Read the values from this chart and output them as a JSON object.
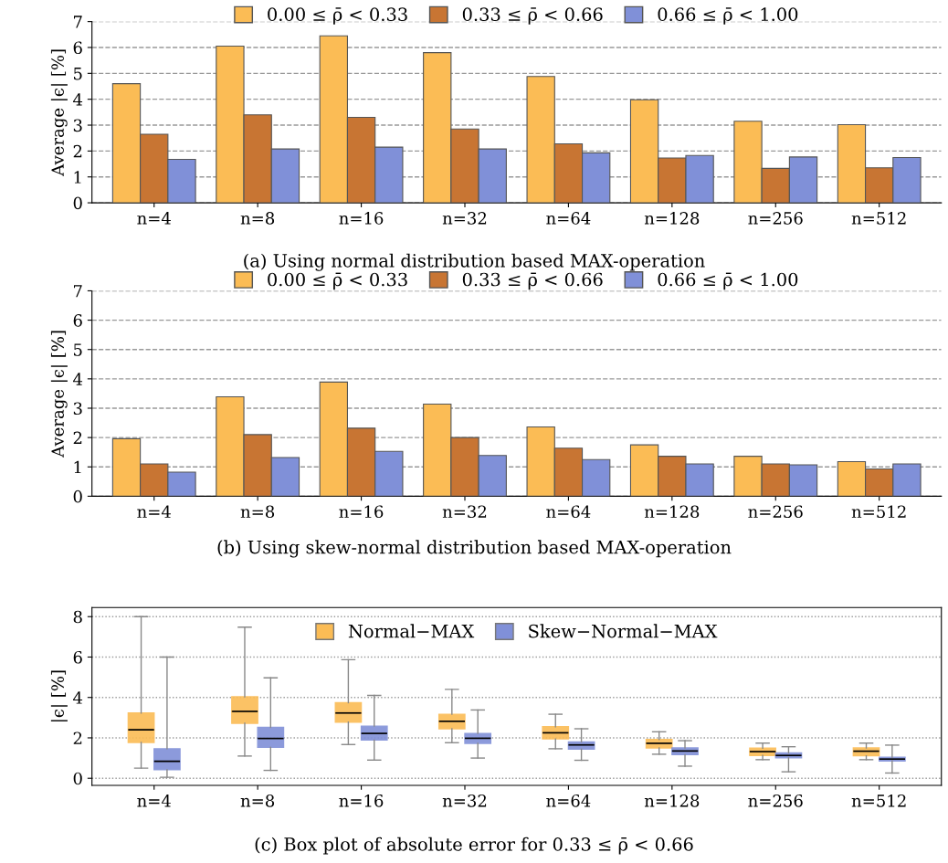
{
  "chart_data": [
    {
      "type": "bar",
      "ylabel": "Average |ϵ| [%]",
      "annotations": [
        "(a) Using normal distribution based MAX-operation"
      ],
      "categories": [
        "n=4",
        "n=8",
        "n=16",
        "n=32",
        "n=64",
        "n=128",
        "n=256",
        "n=512"
      ],
      "ylim": [
        0,
        7
      ],
      "yticks": [
        0,
        1,
        2,
        3,
        4,
        5,
        6,
        7
      ],
      "grid": "y",
      "legend": "top",
      "series": [
        {
          "name": "0.00 ≤ ρ̄ < 0.33",
          "color": "#fbbc55",
          "values": [
            4.6,
            6.05,
            6.45,
            5.8,
            4.88,
            3.98,
            3.15,
            3.02
          ]
        },
        {
          "name": "0.33 ≤ ρ̄ < 0.66",
          "color": "#c87533",
          "values": [
            2.65,
            3.4,
            3.3,
            2.85,
            2.28,
            1.73,
            1.33,
            1.35
          ]
        },
        {
          "name": "0.66 ≤ ρ̄ < 1.00",
          "color": "#8090d8",
          "values": [
            1.68,
            2.08,
            2.15,
            2.08,
            1.93,
            1.83,
            1.77,
            1.75
          ]
        }
      ]
    },
    {
      "type": "bar",
      "ylabel": "Average |ϵ| [%]",
      "annotations": [
        "(b) Using skew-normal distribution based MAX-operation"
      ],
      "categories": [
        "n=4",
        "n=8",
        "n=16",
        "n=32",
        "n=64",
        "n=128",
        "n=256",
        "n=512"
      ],
      "ylim": [
        0,
        7
      ],
      "yticks": [
        0,
        1,
        2,
        3,
        4,
        5,
        6,
        7
      ],
      "grid": "y",
      "legend": "top",
      "series": [
        {
          "name": "0.00 ≤ ρ̄ < 0.33",
          "color": "#fbbc55",
          "values": [
            1.96,
            3.39,
            3.89,
            3.14,
            2.36,
            1.75,
            1.36,
            1.18
          ]
        },
        {
          "name": "0.33 ≤ ρ̄ < 0.66",
          "color": "#c87533",
          "values": [
            1.1,
            2.1,
            2.32,
            2.0,
            1.64,
            1.36,
            1.1,
            0.93
          ]
        },
        {
          "name": "0.66 ≤ ρ̄ < 1.00",
          "color": "#8090d8",
          "values": [
            0.82,
            1.32,
            1.53,
            1.39,
            1.25,
            1.1,
            1.07,
            1.1
          ]
        }
      ]
    },
    {
      "type": "box",
      "ylabel": "|ϵ| [%]",
      "annotations": [
        "(c) Box plot of absolute error for 0.33 ≤ ρ̄ < 0.66"
      ],
      "categories": [
        "n=4",
        "n=8",
        "n=16",
        "n=32",
        "n=64",
        "n=128",
        "n=256",
        "n=512"
      ],
      "ylim": [
        -0.35,
        8.45
      ],
      "yticks": [
        0,
        2,
        4,
        6,
        8
      ],
      "grid": "y",
      "legend": "top",
      "series": [
        {
          "name": "Normal−MAX",
          "color": "#fbbc55",
          "boxes": [
            {
              "low": 0.5,
              "q1": 1.77,
              "median": 2.4,
              "q3": 3.23,
              "high": 8.0
            },
            {
              "low": 1.1,
              "q1": 2.72,
              "median": 3.31,
              "q3": 4.03,
              "high": 7.48
            },
            {
              "low": 1.67,
              "q1": 2.78,
              "median": 3.23,
              "q3": 3.74,
              "high": 5.87
            },
            {
              "low": 1.76,
              "q1": 2.45,
              "median": 2.82,
              "q3": 3.17,
              "high": 4.4
            },
            {
              "low": 1.46,
              "q1": 1.95,
              "median": 2.25,
              "q3": 2.55,
              "high": 3.17
            },
            {
              "low": 1.19,
              "q1": 1.5,
              "median": 1.73,
              "q3": 1.92,
              "high": 2.3
            },
            {
              "low": 0.92,
              "q1": 1.13,
              "median": 1.32,
              "q3": 1.49,
              "high": 1.74
            },
            {
              "low": 0.92,
              "q1": 1.11,
              "median": 1.34,
              "q3": 1.5,
              "high": 1.74
            }
          ]
        },
        {
          "name": "Skew−Normal−MAX",
          "color": "#8090d8",
          "boxes": [
            {
              "low": 0.05,
              "q1": 0.42,
              "median": 0.84,
              "q3": 1.46,
              "high": 6.0
            },
            {
              "low": 0.39,
              "q1": 1.53,
              "median": 1.97,
              "q3": 2.52,
              "high": 4.97
            },
            {
              "low": 0.9,
              "q1": 1.89,
              "median": 2.22,
              "q3": 2.58,
              "high": 4.1
            },
            {
              "low": 1.0,
              "q1": 1.73,
              "median": 1.98,
              "q3": 2.22,
              "high": 3.38
            },
            {
              "low": 0.89,
              "q1": 1.44,
              "median": 1.65,
              "q3": 1.8,
              "high": 2.45
            },
            {
              "low": 0.6,
              "q1": 1.17,
              "median": 1.35,
              "q3": 1.5,
              "high": 1.86
            },
            {
              "low": 0.32,
              "q1": 1.01,
              "median": 1.13,
              "q3": 1.25,
              "high": 1.56
            },
            {
              "low": 0.26,
              "q1": 0.86,
              "median": 0.95,
              "q3": 1.04,
              "high": 1.64
            }
          ]
        }
      ]
    }
  ]
}
